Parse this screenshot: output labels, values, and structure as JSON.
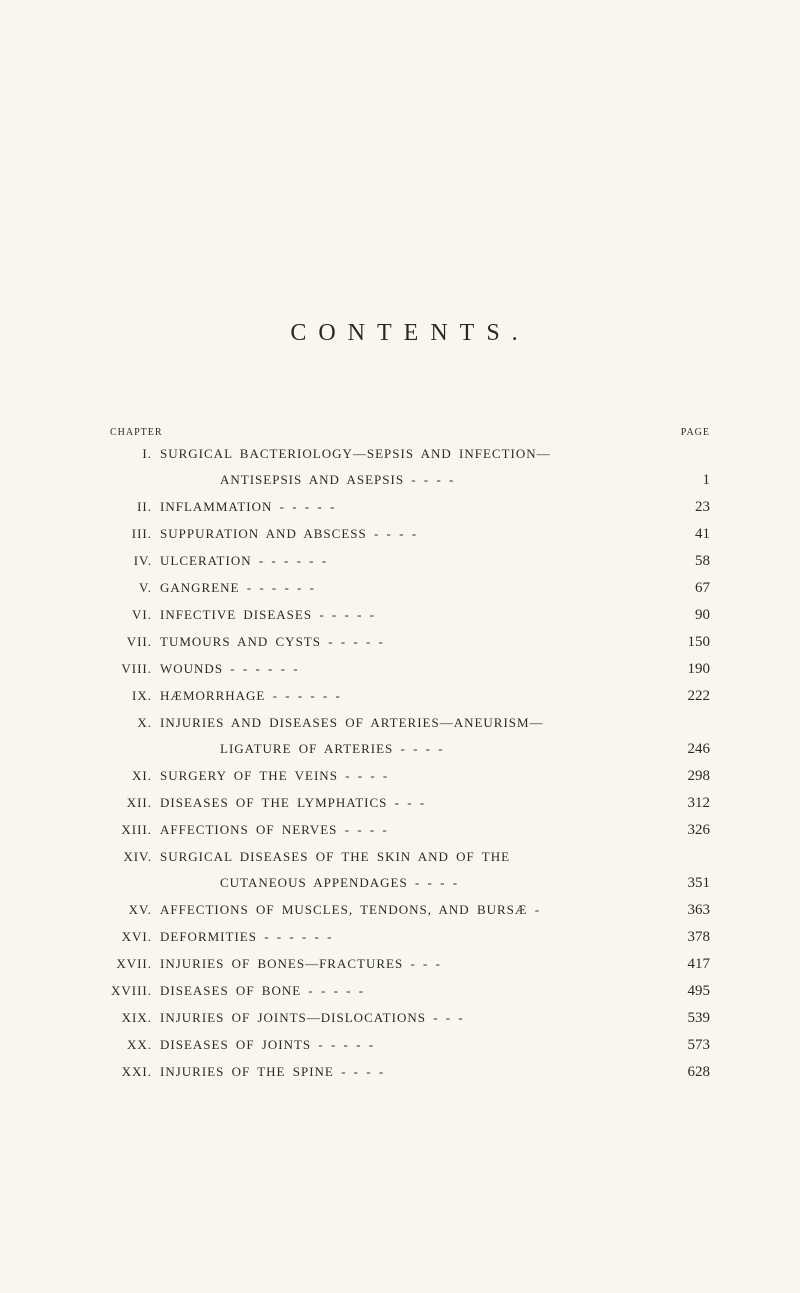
{
  "title": "CONTENTS.",
  "header": {
    "left": "CHAPTER",
    "right": "PAGE"
  },
  "chapters": [
    {
      "roman": "I.",
      "title": "SURGICAL BACTERIOLOGY—SEPSIS AND INFECTION—",
      "page": ""
    },
    {
      "roman": "",
      "title": "ANTISEPSIS AND ASEPSIS  -  -  -  -",
      "page": "1",
      "indent": true
    },
    {
      "roman": "II.",
      "title": "INFLAMMATION  -  -  -  -  -",
      "page": "23"
    },
    {
      "roman": "III.",
      "title": "SUPPURATION AND ABSCESS  -  -  -  -",
      "page": "41"
    },
    {
      "roman": "IV.",
      "title": "ULCERATION  -  -  -  -  -  -",
      "page": "58"
    },
    {
      "roman": "V.",
      "title": "GANGRENE  -  -  -  -  -  -",
      "page": "67"
    },
    {
      "roman": "VI.",
      "title": "INFECTIVE DISEASES  -  -  -  -  -",
      "page": "90"
    },
    {
      "roman": "VII.",
      "title": "TUMOURS AND CYSTS  -  -  -  -  -",
      "page": "150"
    },
    {
      "roman": "VIII.",
      "title": "WOUNDS  -  -  -  -  -  -",
      "page": "190"
    },
    {
      "roman": "IX.",
      "title": "HÆMORRHAGE  -  -  -  -  -  -",
      "page": "222"
    },
    {
      "roman": "X.",
      "title": "INJURIES AND DISEASES OF ARTERIES—ANEURISM—",
      "page": ""
    },
    {
      "roman": "",
      "title": "LIGATURE OF ARTERIES  -  -  -  -",
      "page": "246",
      "indent": true
    },
    {
      "roman": "XI.",
      "title": "SURGERY OF THE VEINS  -  -  -  -",
      "page": "298"
    },
    {
      "roman": "XII.",
      "title": "DISEASES OF THE LYMPHATICS  -  -  -",
      "page": "312"
    },
    {
      "roman": "XIII.",
      "title": "AFFECTIONS OF NERVES  -  -  -  -",
      "page": "326"
    },
    {
      "roman": "XIV.",
      "title": "SURGICAL DISEASES OF THE SKIN AND OF THE",
      "page": ""
    },
    {
      "roman": "",
      "title": "CUTANEOUS APPENDAGES  -  -  -  -",
      "page": "351",
      "indent": true
    },
    {
      "roman": "XV.",
      "title": "AFFECTIONS OF MUSCLES, TENDONS, AND BURSÆ  -",
      "page": "363"
    },
    {
      "roman": "XVI.",
      "title": "DEFORMITIES  -  -  -  -  -  -",
      "page": "378"
    },
    {
      "roman": "XVII.",
      "title": "INJURIES OF BONES—FRACTURES  -  -  -",
      "page": "417"
    },
    {
      "roman": "XVIII.",
      "title": "DISEASES OF BONE  -  -  -  -  -",
      "page": "495"
    },
    {
      "roman": "XIX.",
      "title": "INJURIES OF JOINTS—DISLOCATIONS  -  -  -",
      "page": "539"
    },
    {
      "roman": "XX.",
      "title": "DISEASES OF JOINTS  -  -  -  -  -",
      "page": "573"
    },
    {
      "roman": "XXI.",
      "title": "INJURIES OF THE SPINE  -  -  -  -",
      "page": "628"
    }
  ]
}
